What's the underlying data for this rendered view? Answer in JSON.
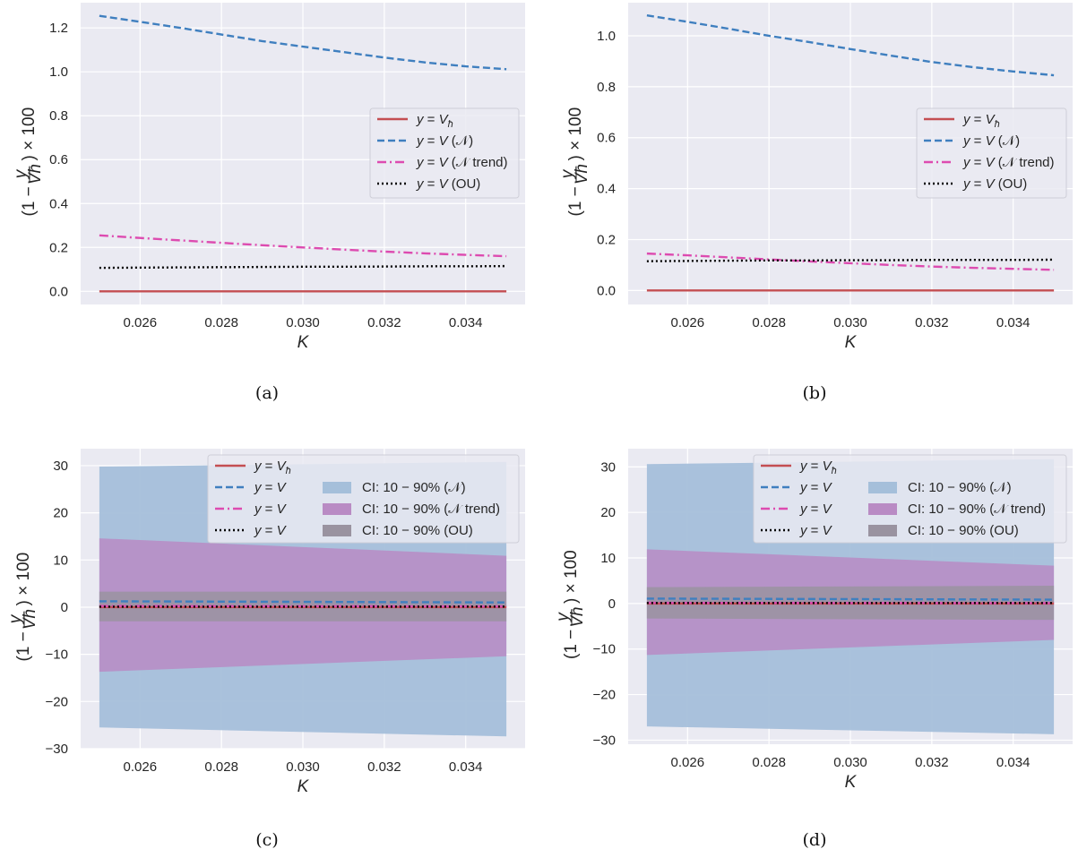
{
  "colors": {
    "background": "#eaeaf2",
    "grid": "#ffffff",
    "vh": "#c44e52",
    "n": "#4c72b0",
    "n_line": "#3f7fbf",
    "ntrend": "#dd4bb0",
    "ou": "#000000",
    "band_n": "#a5bfda",
    "band_ntrend": "#b98bc4",
    "band_ou": "#9a93a0"
  },
  "chart_data": [
    {
      "id": "a",
      "type": "line",
      "caption": "(a)",
      "xlabel": "K",
      "ylabel": "(1 − y/V_ħ) × 100",
      "xlim": [
        0.02454,
        0.03546
      ],
      "ylim": [
        -0.06,
        1.315
      ],
      "xticks": [
        0.026,
        0.028,
        0.03,
        0.032,
        0.034
      ],
      "xtick_labels": [
        "0.026",
        "0.028",
        "0.030",
        "0.032",
        "0.034"
      ],
      "yticks": [
        0.0,
        0.2,
        0.4,
        0.6,
        0.8,
        1.0,
        1.2
      ],
      "ytick_labels": [
        "0.0",
        "0.2",
        "0.4",
        "0.6",
        "0.8",
        "1.0",
        "1.2"
      ],
      "grid": true,
      "legend_position": "center-right",
      "x": [
        0.025,
        0.026,
        0.027,
        0.028,
        0.029,
        0.03,
        0.031,
        0.032,
        0.033,
        0.034,
        0.035
      ],
      "series": [
        {
          "name": "y = V_ħ",
          "style": "solid",
          "color_key": "vh",
          "values": [
            0,
            0,
            0,
            0,
            0,
            0,
            0,
            0,
            0,
            0,
            0
          ]
        },
        {
          "name": "y = V (𝒩)",
          "style": "dashed",
          "color_key": "n_line",
          "values": [
            1.255,
            1.228,
            1.2,
            1.17,
            1.14,
            1.115,
            1.09,
            1.065,
            1.043,
            1.025,
            1.012
          ]
        },
        {
          "name": "y = V (𝒩 trend)",
          "style": "dashdot",
          "color_key": "ntrend",
          "values": [
            0.255,
            0.243,
            0.232,
            0.221,
            0.21,
            0.2,
            0.19,
            0.181,
            0.173,
            0.166,
            0.16
          ]
        },
        {
          "name": "y = V (OU)",
          "style": "dotted",
          "color_key": "ou",
          "values": [
            0.107,
            0.108,
            0.109,
            0.11,
            0.111,
            0.112,
            0.112,
            0.113,
            0.114,
            0.114,
            0.115
          ]
        }
      ],
      "bands": [],
      "legend": [
        {
          "label": "y = V_ħ",
          "kind": "line",
          "series": 0
        },
        {
          "label": "y = V (𝒩)",
          "kind": "line",
          "series": 1
        },
        {
          "label": "y = V (𝒩 trend)",
          "kind": "line",
          "series": 2
        },
        {
          "label": "y = V (OU)",
          "kind": "line",
          "series": 3
        }
      ]
    },
    {
      "id": "b",
      "type": "line",
      "caption": "(b)",
      "xlabel": "K",
      "ylabel": "(1 − y/V_ħ) × 100",
      "xlim": [
        0.02454,
        0.03546
      ],
      "ylim": [
        -0.055,
        1.13
      ],
      "xticks": [
        0.026,
        0.028,
        0.03,
        0.032,
        0.034
      ],
      "xtick_labels": [
        "0.026",
        "0.028",
        "0.030",
        "0.032",
        "0.034"
      ],
      "yticks": [
        0.0,
        0.2,
        0.4,
        0.6,
        0.8,
        1.0
      ],
      "ytick_labels": [
        "0.0",
        "0.2",
        "0.4",
        "0.6",
        "0.8",
        "1.0"
      ],
      "grid": true,
      "legend_position": "center-right",
      "x": [
        0.025,
        0.026,
        0.027,
        0.028,
        0.029,
        0.03,
        0.031,
        0.032,
        0.033,
        0.034,
        0.035
      ],
      "series": [
        {
          "name": "y = V_ħ",
          "style": "solid",
          "color_key": "vh",
          "values": [
            0,
            0,
            0,
            0,
            0,
            0,
            0,
            0,
            0,
            0,
            0
          ]
        },
        {
          "name": "y = V (𝒩)",
          "style": "dashed",
          "color_key": "n_line",
          "values": [
            1.08,
            1.055,
            1.028,
            1.0,
            0.975,
            0.948,
            0.922,
            0.897,
            0.877,
            0.86,
            0.845
          ]
        },
        {
          "name": "y = V (𝒩 trend)",
          "style": "dashdot",
          "color_key": "ntrend",
          "values": [
            0.145,
            0.138,
            0.13,
            0.122,
            0.114,
            0.107,
            0.1,
            0.094,
            0.089,
            0.085,
            0.081
          ]
        },
        {
          "name": "y = V (OU)",
          "style": "dotted",
          "color_key": "ou",
          "values": [
            0.115,
            0.116,
            0.117,
            0.118,
            0.118,
            0.119,
            0.119,
            0.12,
            0.12,
            0.12,
            0.121
          ]
        }
      ],
      "bands": [],
      "legend": [
        {
          "label": "y = V_ħ",
          "kind": "line",
          "series": 0
        },
        {
          "label": "y = V (𝒩)",
          "kind": "line",
          "series": 1
        },
        {
          "label": "y = V (𝒩 trend)",
          "kind": "line",
          "series": 2
        },
        {
          "label": "y = V (OU)",
          "kind": "line",
          "series": 3
        }
      ]
    },
    {
      "id": "c",
      "type": "area",
      "caption": "(c)",
      "xlabel": "K",
      "ylabel": "(1 − y/V_ħ) × 100",
      "xlim": [
        0.02454,
        0.03546
      ],
      "ylim": [
        -30.0,
        33.6
      ],
      "xticks": [
        0.026,
        0.028,
        0.03,
        0.032,
        0.034
      ],
      "xtick_labels": [
        "0.026",
        "0.028",
        "0.030",
        "0.032",
        "0.034"
      ],
      "yticks": [
        -30,
        -20,
        -10,
        0,
        10,
        20,
        30
      ],
      "ytick_labels": [
        "−30",
        "−20",
        "−10",
        "0",
        "10",
        "20",
        "30"
      ],
      "grid": true,
      "legend_position": "upper-right",
      "x": [
        0.025,
        0.035
      ],
      "series": [
        {
          "name": "y = V_ħ",
          "style": "solid",
          "color_key": "vh",
          "values": [
            0,
            0
          ]
        },
        {
          "name": "y = V",
          "style": "dashed",
          "color_key": "n_line",
          "values": [
            1.25,
            1.0
          ]
        },
        {
          "name": "y = V",
          "style": "dashdot",
          "color_key": "ntrend",
          "values": [
            0.25,
            0.16
          ]
        },
        {
          "name": "y = V",
          "style": "dotted",
          "color_key": "ou",
          "values": [
            0.1,
            0.12
          ]
        }
      ],
      "bands": [
        {
          "name": "CI: 10 − 90% (𝒩)",
          "color_key": "band_n",
          "lower": [
            -25.5,
            -27.4
          ],
          "upper": [
            29.8,
            30.8
          ]
        },
        {
          "name": "CI: 10 − 90% (𝒩 trend)",
          "color_key": "band_ntrend",
          "lower": [
            -13.7,
            -10.4
          ],
          "upper": [
            14.6,
            10.9
          ]
        },
        {
          "name": "CI: 10 − 90% (OU)",
          "color_key": "band_ou",
          "lower": [
            -3.0,
            -3.0
          ],
          "upper": [
            3.3,
            3.3
          ]
        }
      ],
      "legend": [
        {
          "label": "y = V_ħ",
          "kind": "line",
          "series": 0
        },
        {
          "label": "y = V",
          "kind": "line",
          "series": 1
        },
        {
          "label": "y = V",
          "kind": "line",
          "series": 2
        },
        {
          "label": "y = V",
          "kind": "line",
          "series": 3
        },
        {
          "label": "CI: 10 − 90% (𝒩)",
          "kind": "band",
          "band": 0
        },
        {
          "label": "CI: 10 − 90% (𝒩 trend)",
          "kind": "band",
          "band": 1
        },
        {
          "label": "CI: 10 − 90% (OU)",
          "kind": "band",
          "band": 2
        }
      ]
    },
    {
      "id": "d",
      "type": "area",
      "caption": "(d)",
      "xlabel": "K",
      "ylabel": "(1 − y/V_ħ) × 100",
      "xlim": [
        0.02454,
        0.03546
      ],
      "ylim": [
        -30.9,
        34.0
      ],
      "xticks": [
        0.026,
        0.028,
        0.03,
        0.032,
        0.034
      ],
      "xtick_labels": [
        "0.026",
        "0.028",
        "0.030",
        "0.032",
        "0.034"
      ],
      "yticks": [
        -30,
        -20,
        -10,
        0,
        10,
        20,
        30
      ],
      "ytick_labels": [
        "−30",
        "−20",
        "−10",
        "0",
        "10",
        "20",
        "30"
      ],
      "grid": true,
      "legend_position": "upper-right",
      "x": [
        0.025,
        0.035
      ],
      "series": [
        {
          "name": "y = V_ħ",
          "style": "solid",
          "color_key": "vh",
          "values": [
            0,
            0
          ]
        },
        {
          "name": "y = V",
          "style": "dashed",
          "color_key": "n_line",
          "values": [
            1.08,
            0.85
          ]
        },
        {
          "name": "y = V",
          "style": "dashdot",
          "color_key": "ntrend",
          "values": [
            0.15,
            0.08
          ]
        },
        {
          "name": "y = V",
          "style": "dotted",
          "color_key": "ou",
          "values": [
            0.12,
            0.12
          ]
        }
      ],
      "bands": [
        {
          "name": "CI: 10 − 90% (𝒩)",
          "color_key": "band_n",
          "lower": [
            -27.0,
            -28.7
          ],
          "upper": [
            30.6,
            31.7
          ]
        },
        {
          "name": "CI: 10 − 90% (𝒩 trend)",
          "color_key": "band_ntrend",
          "lower": [
            -11.3,
            -8.0
          ],
          "upper": [
            11.9,
            8.3
          ]
        },
        {
          "name": "CI: 10 − 90% (OU)",
          "color_key": "band_ou",
          "lower": [
            -3.3,
            -3.6
          ],
          "upper": [
            3.6,
            3.9
          ]
        }
      ],
      "legend": [
        {
          "label": "y = V_ħ",
          "kind": "line",
          "series": 0
        },
        {
          "label": "y = V",
          "kind": "line",
          "series": 1
        },
        {
          "label": "y = V",
          "kind": "line",
          "series": 2
        },
        {
          "label": "y = V",
          "kind": "line",
          "series": 3
        },
        {
          "label": "CI: 10 − 90% (𝒩)",
          "kind": "band",
          "band": 0
        },
        {
          "label": "CI: 10 − 90% (𝒩 trend)",
          "kind": "band",
          "band": 1
        },
        {
          "label": "CI: 10 − 90% (OU)",
          "kind": "band",
          "band": 2
        }
      ]
    }
  ]
}
